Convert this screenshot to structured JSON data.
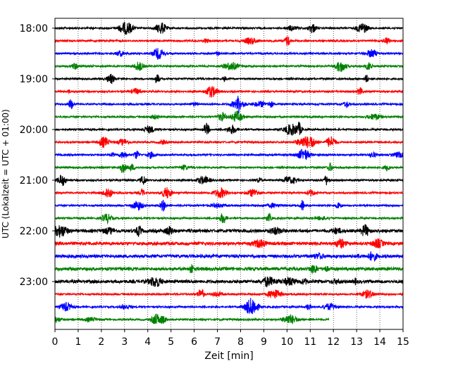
{
  "chart_data": {
    "type": "line",
    "subtype": "helicorder-seismogram",
    "xlabel": "Zeit  [min]",
    "ylabel": "UTC (Lokalzeit = UTC + 01:00)",
    "xlim": [
      0,
      15
    ],
    "x_ticks": [
      "0",
      "1",
      "2",
      "3",
      "4",
      "5",
      "6",
      "7",
      "8",
      "9",
      "10",
      "11",
      "12",
      "13",
      "14",
      "15"
    ],
    "y_tick_labels": [
      "18:00",
      "19:00",
      "20:00",
      "21:00",
      "22:00",
      "23:00"
    ],
    "grid": "vertical dotted lines at each minute",
    "trace_interval_minutes": 15,
    "trace_colors": [
      "#000000",
      "#ff0000",
      "#0000ff",
      "#008000"
    ],
    "traces": [
      {
        "start": "18:00",
        "color": "#000000",
        "end_min": 15
      },
      {
        "start": "18:15",
        "color": "#ff0000",
        "end_min": 15
      },
      {
        "start": "18:30",
        "color": "#0000ff",
        "end_min": 15
      },
      {
        "start": "18:45",
        "color": "#008000",
        "end_min": 15
      },
      {
        "start": "19:00",
        "color": "#000000",
        "end_min": 15
      },
      {
        "start": "19:15",
        "color": "#ff0000",
        "end_min": 15
      },
      {
        "start": "19:30",
        "color": "#0000ff",
        "end_min": 15
      },
      {
        "start": "19:45",
        "color": "#008000",
        "end_min": 15
      },
      {
        "start": "20:00",
        "color": "#000000",
        "end_min": 15
      },
      {
        "start": "20:15",
        "color": "#ff0000",
        "end_min": 15
      },
      {
        "start": "20:30",
        "color": "#0000ff",
        "end_min": 15
      },
      {
        "start": "20:45",
        "color": "#008000",
        "end_min": 15
      },
      {
        "start": "21:00",
        "color": "#000000",
        "end_min": 15
      },
      {
        "start": "21:15",
        "color": "#ff0000",
        "end_min": 15
      },
      {
        "start": "21:30",
        "color": "#0000ff",
        "end_min": 15
      },
      {
        "start": "21:45",
        "color": "#008000",
        "end_min": 15
      },
      {
        "start": "22:00",
        "color": "#000000",
        "end_min": 15
      },
      {
        "start": "22:15",
        "color": "#ff0000",
        "end_min": 15
      },
      {
        "start": "22:30",
        "color": "#0000ff",
        "end_min": 15
      },
      {
        "start": "22:45",
        "color": "#008000",
        "end_min": 15
      },
      {
        "start": "23:00",
        "color": "#000000",
        "end_min": 15
      },
      {
        "start": "23:15",
        "color": "#ff0000",
        "end_min": 15
      },
      {
        "start": "23:30",
        "color": "#0000ff",
        "end_min": 15
      },
      {
        "start": "23:45",
        "color": "#008000",
        "end_min": 11.8
      }
    ]
  }
}
